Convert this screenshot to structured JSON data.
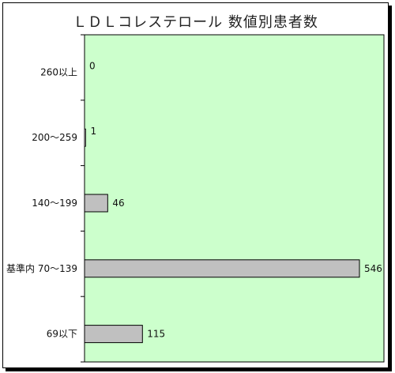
{
  "chart_data": {
    "type": "bar",
    "orientation": "horizontal",
    "title": "ＬＤＬコレステロール 数値別患者数",
    "categories": [
      "260以上",
      "200～259",
      "140～199",
      "基準内 70～139",
      "69以下"
    ],
    "values": [
      0,
      1,
      46,
      546,
      115
    ],
    "data_labels": [
      "0",
      "1",
      "46",
      "546",
      "115"
    ],
    "xlabel": "",
    "ylabel": "",
    "xlim": [
      0,
      580
    ],
    "grid": false,
    "legend": "none",
    "colors": {
      "plot_background": "#ccffcc",
      "bar_fill": "#c0c0c0",
      "bar_stroke": "#000000"
    }
  }
}
